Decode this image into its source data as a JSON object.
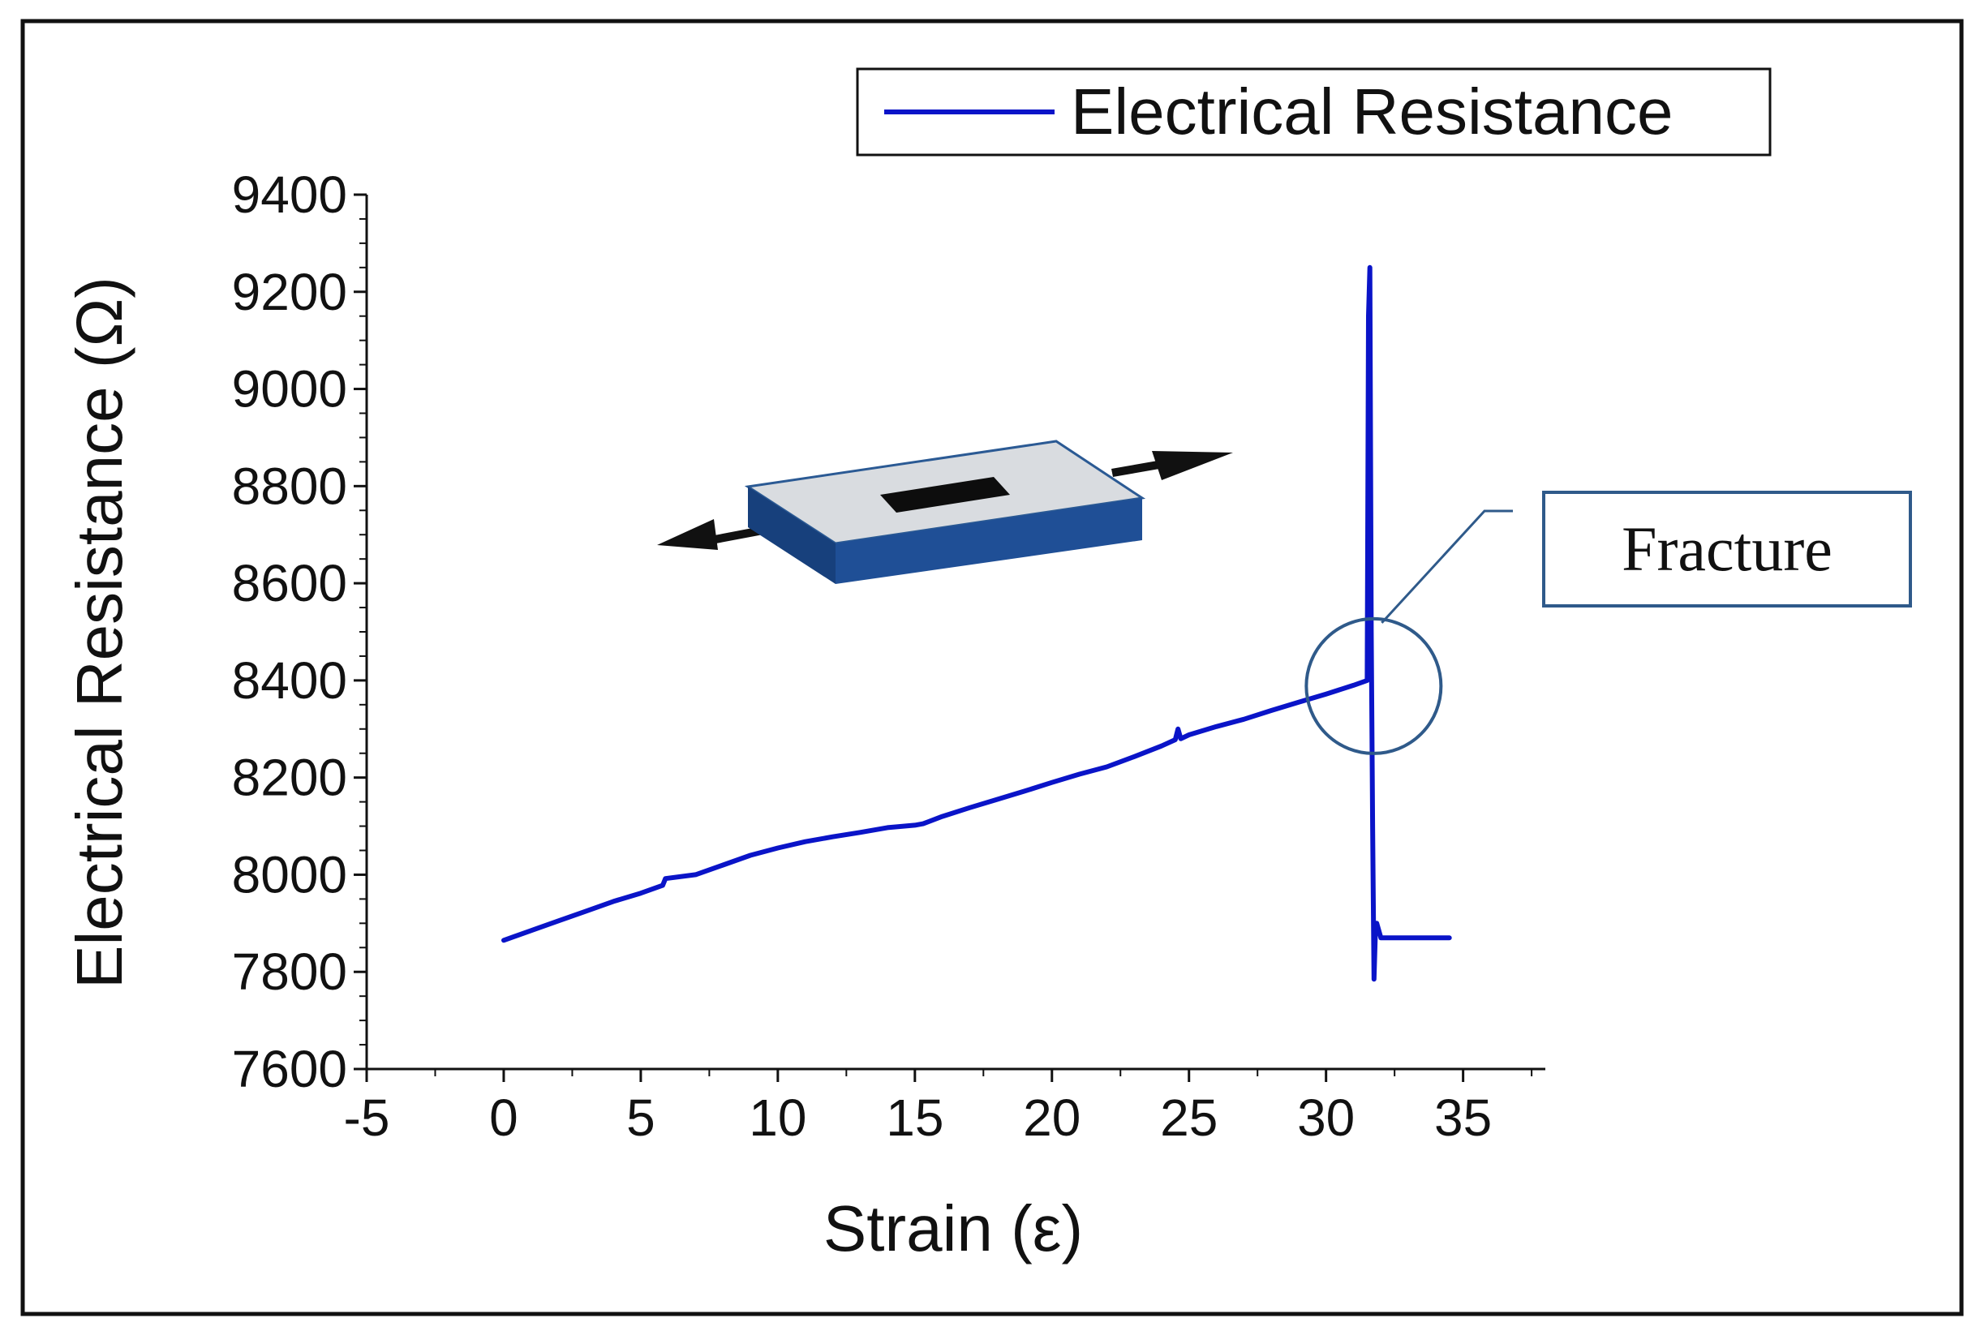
{
  "chart_data": {
    "type": "line",
    "title": "",
    "xlabel": "Strain (ε)",
    "ylabel": "Electrical Resistance (Ω)",
    "xlim": [
      -5,
      38
    ],
    "ylim": [
      7600,
      9400
    ],
    "x_ticks": [
      -5,
      0,
      5,
      10,
      15,
      20,
      25,
      30,
      35
    ],
    "y_ticks": [
      7600,
      7800,
      8000,
      8200,
      8400,
      8600,
      8800,
      9000,
      9200,
      9400
    ],
    "x_tick_labels": [
      "-5",
      "0",
      "5",
      "10",
      "15",
      "20",
      "25",
      "30",
      "35"
    ],
    "y_tick_labels": [
      "7600",
      "7800",
      "8000",
      "8200",
      "8400",
      "8600",
      "8800",
      "9000",
      "9200",
      "9400"
    ],
    "grid": false,
    "legend_position": "top-right",
    "series": [
      {
        "name": "Electrical Resistance",
        "color": "#0a14c8",
        "points": [
          [
            0,
            7865
          ],
          [
            1,
            7885
          ],
          [
            2,
            7905
          ],
          [
            3,
            7925
          ],
          [
            4,
            7945
          ],
          [
            5,
            7962
          ],
          [
            5.8,
            7978
          ],
          [
            5.9,
            7992
          ],
          [
            7,
            8000
          ],
          [
            8,
            8020
          ],
          [
            9,
            8040
          ],
          [
            10,
            8055
          ],
          [
            11,
            8068
          ],
          [
            12,
            8078
          ],
          [
            13,
            8087
          ],
          [
            14,
            8097
          ],
          [
            15,
            8102
          ],
          [
            15.3,
            8105
          ],
          [
            16,
            8120
          ],
          [
            17,
            8138
          ],
          [
            18,
            8155
          ],
          [
            19,
            8172
          ],
          [
            20,
            8190
          ],
          [
            21,
            8207
          ],
          [
            22,
            8222
          ],
          [
            23,
            8243
          ],
          [
            24,
            8265
          ],
          [
            24.5,
            8278
          ],
          [
            24.6,
            8300
          ],
          [
            24.7,
            8280
          ],
          [
            25,
            8288
          ],
          [
            26,
            8305
          ],
          [
            27,
            8320
          ],
          [
            28,
            8338
          ],
          [
            29,
            8355
          ],
          [
            30,
            8372
          ],
          [
            31,
            8390
          ],
          [
            31.5,
            8400
          ],
          [
            31.55,
            9150
          ],
          [
            31.6,
            9250
          ],
          [
            31.65,
            8500
          ],
          [
            31.7,
            8100
          ],
          [
            31.75,
            7785
          ],
          [
            31.8,
            7880
          ],
          [
            31.85,
            7900
          ],
          [
            32.0,
            7870
          ],
          [
            33,
            7870
          ],
          [
            34.5,
            7870
          ]
        ]
      }
    ],
    "annotations": {
      "fracture_label": "Fracture",
      "fracture_circle_center": [
        31.5,
        8430
      ],
      "fracture_circle_color": "#2f5a8a"
    }
  }
}
